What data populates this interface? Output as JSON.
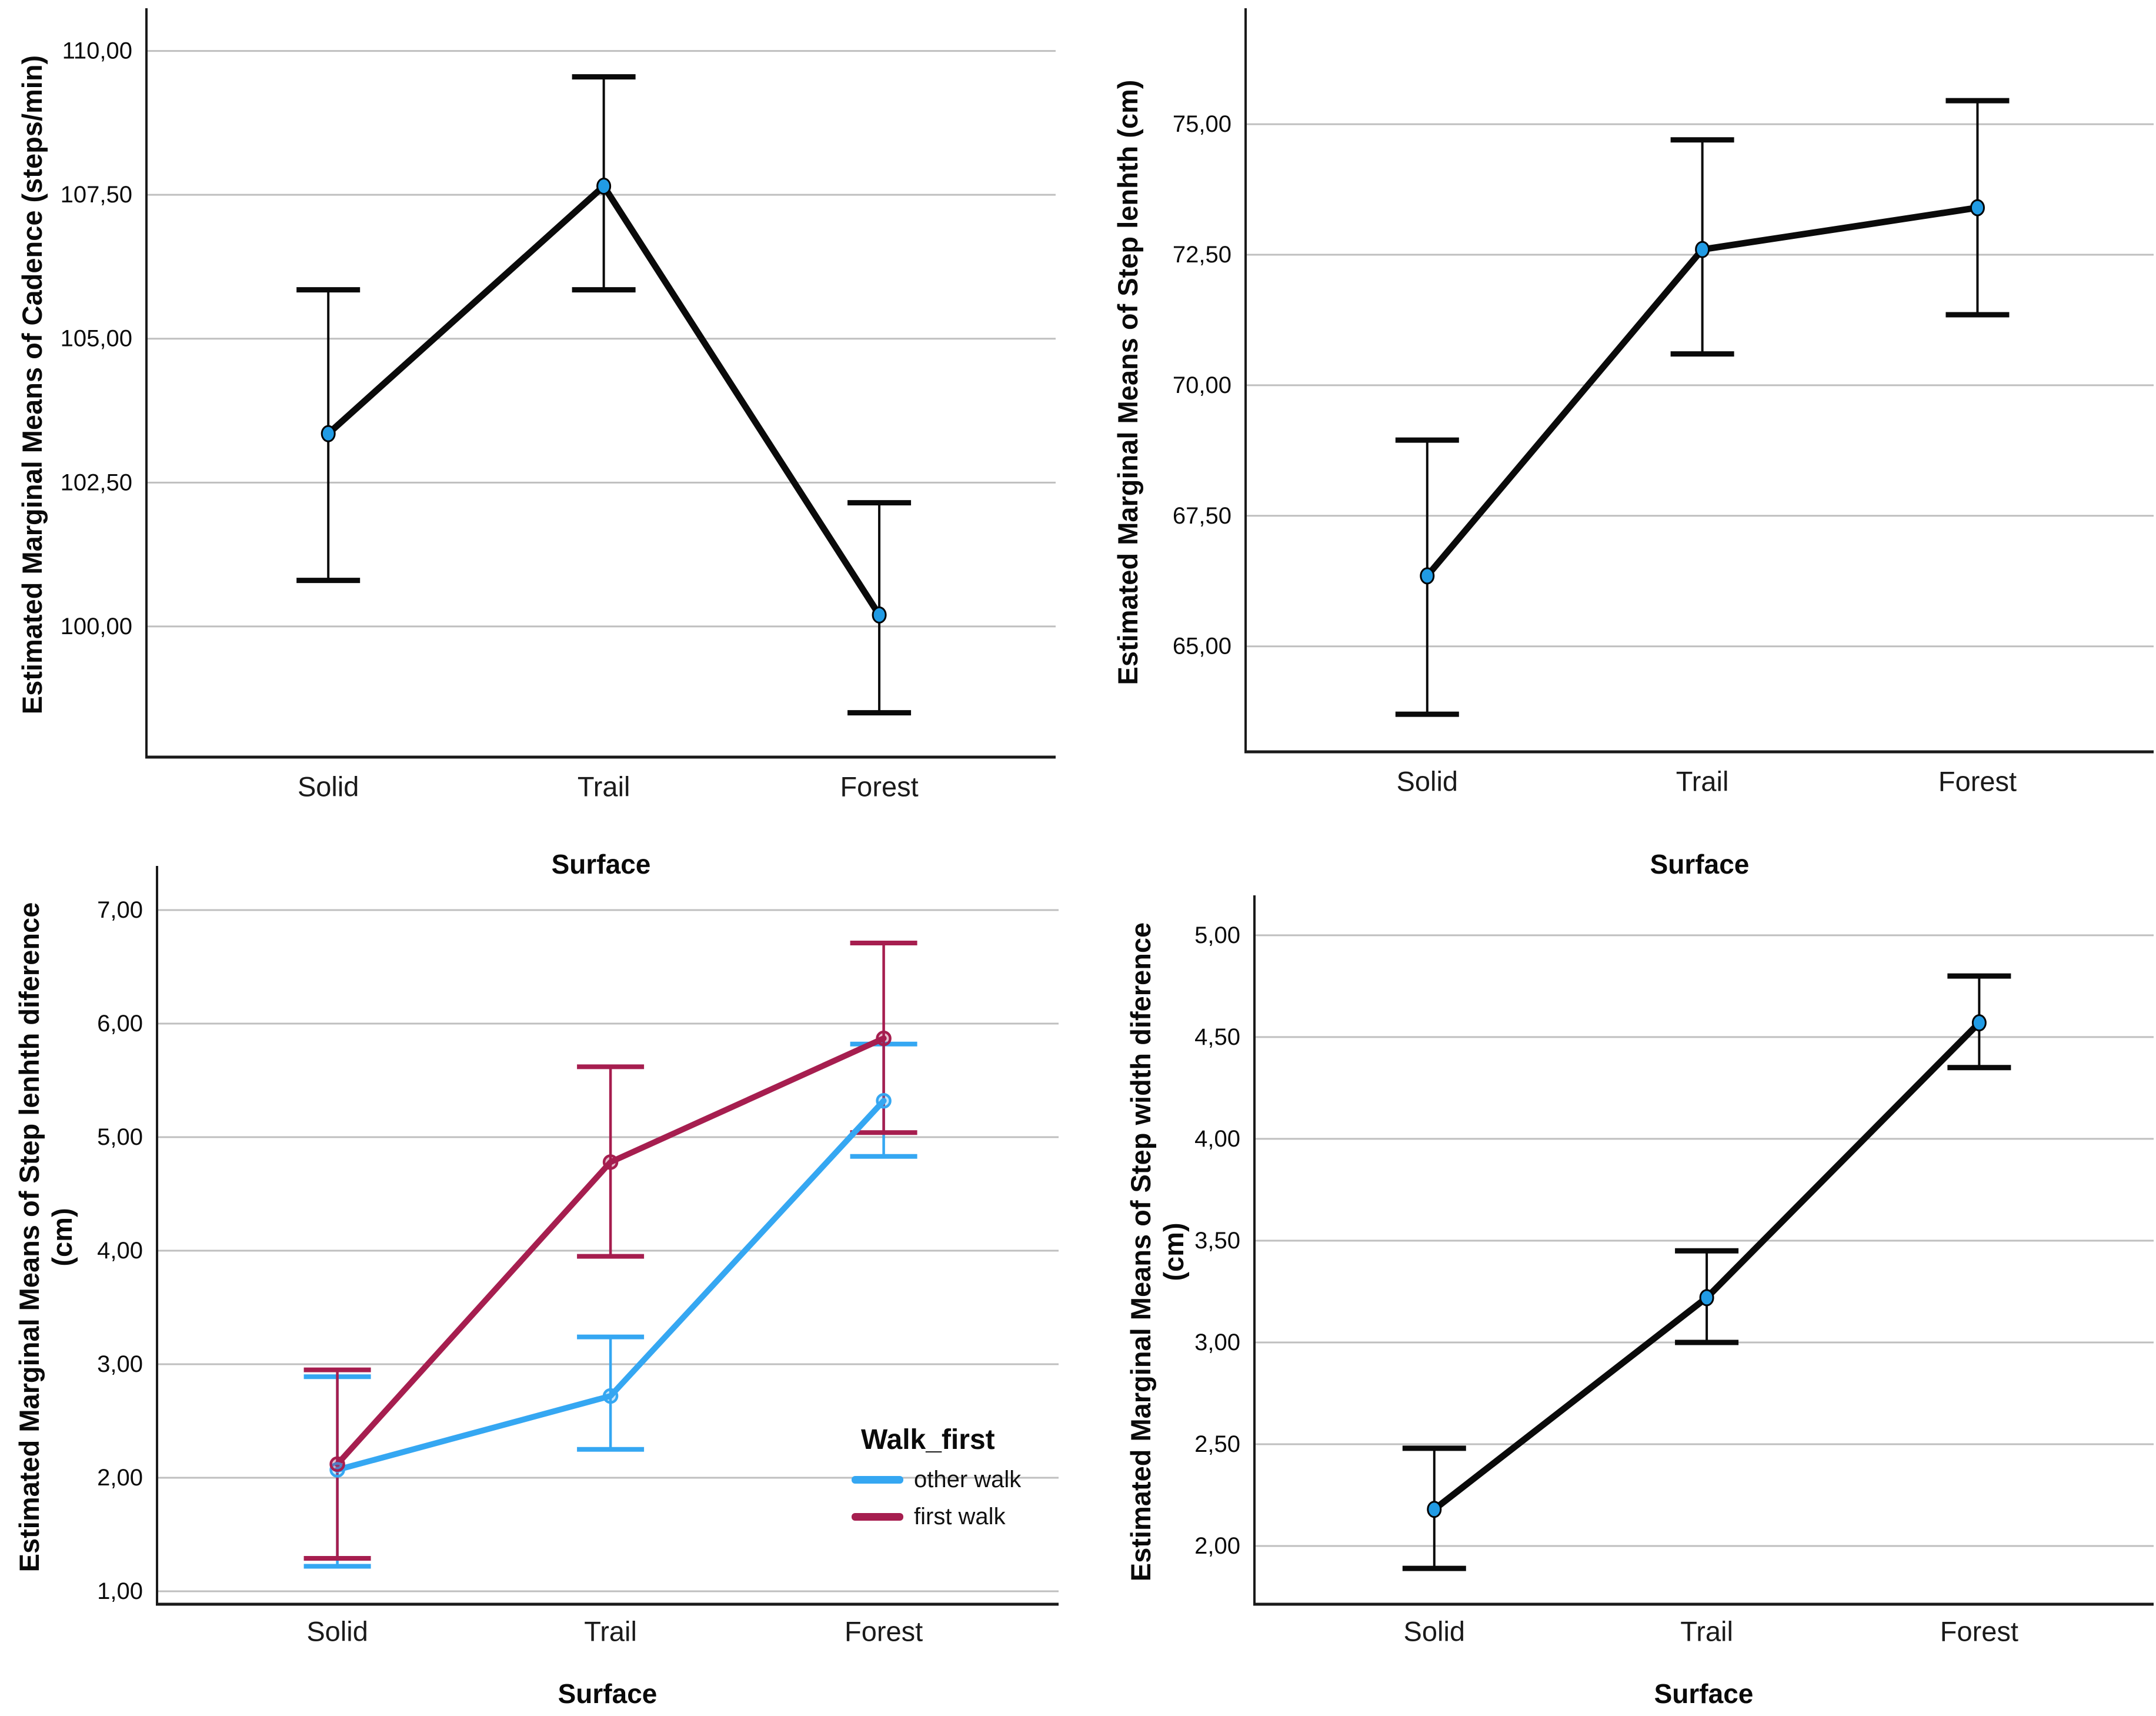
{
  "page": {
    "background": "#ffffff",
    "grid_color": "#bfbfbf",
    "axis_color": "#1a1a1a",
    "text_color": "#0b0b0b"
  },
  "chart_data": [
    {
      "id": "cadence-by-surface",
      "type": "line",
      "xlabel": "Surface",
      "ylabel": "Estimated Marginal Means of Cadence (steps/min)",
      "categories": [
        "Solid",
        "Trail",
        "Forest"
      ],
      "y_ticks": [
        {
          "v": 110.0,
          "label": "110,00"
        },
        {
          "v": 107.5,
          "label": "107,50"
        },
        {
          "v": 105.0,
          "label": "105,00"
        },
        {
          "v": 102.5,
          "label": "102,50"
        },
        {
          "v": 100.0,
          "label": "100,00"
        }
      ],
      "ylim": [
        97.73,
        110.66
      ],
      "grid": true,
      "legend": null,
      "series": [
        {
          "name": "estimated marginal mean",
          "line_color": "#0a0a0a",
          "marker": "filled-circle",
          "marker_fill": "#219BE4",
          "values": [
            103.35,
            107.65,
            100.2
          ],
          "ci_low": [
            100.8,
            105.85,
            98.5
          ],
          "ci_high": [
            105.85,
            109.55,
            102.15
          ]
        }
      ]
    },
    {
      "id": "step-length-by-surface",
      "type": "line",
      "xlabel": "Surface",
      "ylabel": "Estimated Marginal Means of Step lenhth (cm)",
      "categories": [
        "Solid",
        "Trail",
        "Forest"
      ],
      "y_ticks": [
        {
          "v": 75.0,
          "label": "75,00"
        },
        {
          "v": 72.5,
          "label": "72,50"
        },
        {
          "v": 70.0,
          "label": "70,00"
        },
        {
          "v": 67.5,
          "label": "67,50"
        },
        {
          "v": 65.0,
          "label": "65,00"
        }
      ],
      "ylim": [
        62.98,
        77.13
      ],
      "grid": true,
      "legend": null,
      "series": [
        {
          "name": "estimated marginal mean",
          "line_color": "#0a0a0a",
          "marker": "filled-circle",
          "marker_fill": "#219BE4",
          "values": [
            66.35,
            72.6,
            73.4
          ],
          "ci_low": [
            63.7,
            70.6,
            71.35
          ],
          "ci_high": [
            68.95,
            74.7,
            75.45
          ]
        }
      ]
    },
    {
      "id": "step-length-difference-by-surface",
      "type": "line",
      "xlabel": "Surface",
      "ylabel": "Estimated Marginal Means of Step lenhth diference",
      "ylabel_line2": "(cm)",
      "categories": [
        "Solid",
        "Trail",
        "Forest"
      ],
      "y_ticks": [
        {
          "v": 7.0,
          "label": "7,00"
        },
        {
          "v": 6.0,
          "label": "6,00"
        },
        {
          "v": 5.0,
          "label": "5,00"
        },
        {
          "v": 4.0,
          "label": "4,00"
        },
        {
          "v": 3.0,
          "label": "3,00"
        },
        {
          "v": 2.0,
          "label": "2,00"
        },
        {
          "v": 1.0,
          "label": "1,00"
        }
      ],
      "ylim": [
        0.886,
        7.347
      ],
      "grid": true,
      "legend": {
        "title": "Walk_first",
        "position": "inside-bottom-right",
        "items": [
          {
            "label": "other walk",
            "color": "#35A7F2"
          },
          {
            "label": "first walk",
            "color": "#A61E4F"
          }
        ]
      },
      "series": [
        {
          "name": "other walk",
          "line_color": "#35A7F2",
          "marker": "open-circle",
          "values": [
            2.07,
            2.72,
            5.32
          ],
          "ci_low": [
            1.22,
            2.25,
            4.83
          ],
          "ci_high": [
            2.89,
            3.24,
            5.82
          ]
        },
        {
          "name": "first walk",
          "line_color": "#A61E4F",
          "marker": "open-circle",
          "values": [
            2.12,
            4.78,
            5.87
          ],
          "ci_low": [
            1.29,
            3.95,
            5.04
          ],
          "ci_high": [
            2.95,
            5.62,
            6.71
          ]
        }
      ]
    },
    {
      "id": "step-width-difference-by-surface",
      "type": "line",
      "xlabel": "Surface",
      "ylabel": "Estimated Marginal Means of Step width diference",
      "ylabel_line2": "(cm)",
      "categories": [
        "Solid",
        "Trail",
        "Forest"
      ],
      "y_ticks": [
        {
          "v": 5.0,
          "label": "5,00"
        },
        {
          "v": 4.5,
          "label": "4,50"
        },
        {
          "v": 4.0,
          "label": "4,00"
        },
        {
          "v": 3.5,
          "label": "3,50"
        },
        {
          "v": 3.0,
          "label": "3,00"
        },
        {
          "v": 2.5,
          "label": "2,50"
        },
        {
          "v": 2.0,
          "label": "2,00"
        }
      ],
      "ylim": [
        1.714,
        5.173
      ],
      "grid": true,
      "legend": null,
      "series": [
        {
          "name": "estimated marginal mean",
          "line_color": "#0a0a0a",
          "marker": "filled-circle",
          "marker_fill": "#219BE4",
          "values": [
            2.18,
            3.22,
            4.57
          ],
          "ci_low": [
            1.89,
            3.0,
            4.35
          ],
          "ci_high": [
            2.48,
            3.45,
            4.8
          ]
        }
      ]
    }
  ]
}
